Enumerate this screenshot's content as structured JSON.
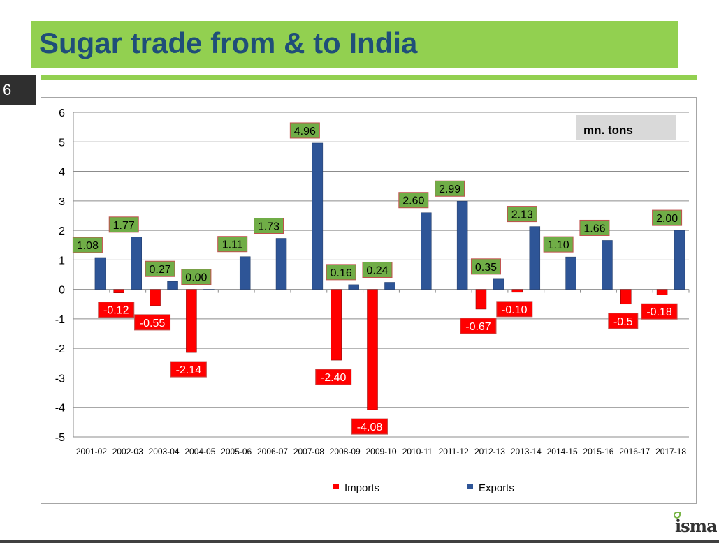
{
  "slide": {
    "title": "Sugar trade from & to India",
    "page_number": "6"
  },
  "logo": {
    "name": "isma",
    "icon": "isma-leaf-logo"
  },
  "colors": {
    "banner": "#92d050",
    "title_text": "#1f4e79",
    "imports": "#ff0000",
    "exports": "#2e5597",
    "label_export_bg": "#70ad47",
    "label_import_bg": "#ff0000",
    "unit_box_bg": "#d9d9d9"
  },
  "chart_data": {
    "type": "bar",
    "unit_label": "mn. tons",
    "categories": [
      "2001-02",
      "2002-03",
      "2003-04",
      "2004-05",
      "2005-06",
      "2006-07",
      "2007-08",
      "2008-09",
      "2009-10",
      "2010-11",
      "2011-12",
      "2012-13",
      "2013-14",
      "2014-15",
      "2015-16",
      "2016-17",
      "2017-18"
    ],
    "ylim": [
      -5,
      6
    ],
    "yticks": [
      6,
      5,
      4,
      3,
      2,
      1,
      0,
      -1,
      -2,
      -3,
      -4,
      -5
    ],
    "grid": true,
    "legend_position": "bottom",
    "series": [
      {
        "name": "Imports",
        "values": [
          null,
          -0.12,
          -0.55,
          -2.14,
          null,
          null,
          null,
          -2.4,
          -4.08,
          null,
          null,
          -0.67,
          -0.1,
          null,
          null,
          -0.5,
          -0.18
        ],
        "labels": [
          null,
          "-0.12",
          "-0.55",
          "-2.14",
          null,
          null,
          null,
          "-2.40",
          "-4.08",
          null,
          null,
          "-0.67",
          "-0.10",
          null,
          null,
          "-0.5",
          "-0.18"
        ]
      },
      {
        "name": "Exports",
        "values": [
          1.08,
          1.77,
          0.27,
          0.0,
          1.11,
          1.73,
          4.96,
          0.16,
          0.24,
          2.6,
          2.99,
          0.35,
          2.13,
          1.1,
          1.66,
          null,
          2.0
        ],
        "labels": [
          "1.08",
          "1.77",
          "0.27",
          "0.00",
          "1.11",
          "1.73",
          "4.96",
          "0.16",
          "0.24",
          "2.60",
          "2.99",
          "0.35",
          "2.13",
          "1.10",
          "1.66",
          null,
          "2.00"
        ]
      }
    ]
  }
}
